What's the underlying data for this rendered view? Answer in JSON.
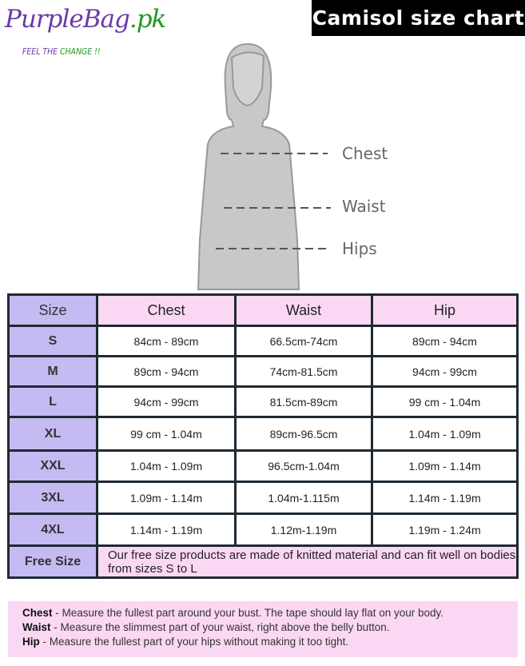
{
  "logo": {
    "brand": "PurpleBag",
    "brand_suffix": ".pk",
    "tagline": "FEEL THE ",
    "tagline_accent": "CHANGE !!"
  },
  "title": "Camisol size chart",
  "figure_labels": {
    "chest": "Chest",
    "waist": "Waist",
    "hips": "Hips"
  },
  "table": {
    "headers": [
      "Size",
      "Chest",
      "Waist",
      "Hip"
    ],
    "rows": [
      [
        "S",
        "84cm - 89cm",
        "66.5cm-74cm",
        "89cm - 94cm"
      ],
      [
        "M",
        "89cm - 94cm",
        "74cm-81.5cm",
        "94cm - 99cm"
      ],
      [
        "L",
        "94cm - 99cm",
        "81.5cm-89cm",
        "99 cm - 1.04m"
      ],
      [
        "XL",
        "99 cm - 1.04m",
        "89cm-96.5cm",
        "1.04m - 1.09m"
      ],
      [
        "XXL",
        "1.04m - 1.09m",
        "96.5cm-1.04m",
        "1.09m - 1.14m"
      ],
      [
        "3XL",
        "1.09m - 1.14m",
        "1.04m-1.115m",
        "1.14m - 1.19m"
      ],
      [
        "4XL",
        "1.14m - 1.19m",
        "1.12m-1.19m",
        "1.19m - 1.24m"
      ]
    ],
    "free_size": {
      "label": "Free Size",
      "text": "Our free size products are made of knitted material and can fit well on bodies from sizes S to L"
    }
  },
  "notes": [
    {
      "term": "Chest",
      "text": " - Measure the fullest part around your bust. The tape should lay flat on your body."
    },
    {
      "term": "Waist",
      "text": " - Measure the slimmest part of your waist, right above the belly button."
    },
    {
      "term": "Hip",
      "text": " - Measure the fullest part of your hips without making it too tight."
    }
  ],
  "colors": {
    "size_column": "#c6baf2",
    "header_row": "#fad8f3",
    "border": "#1e2a33"
  }
}
